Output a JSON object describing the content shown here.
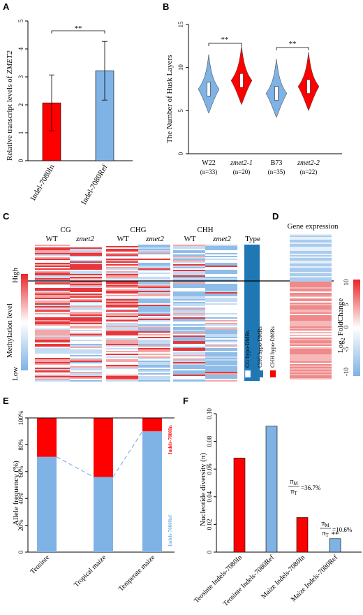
{
  "panel_labels": [
    "A",
    "B",
    "C",
    "D",
    "E",
    "F"
  ],
  "colors": {
    "red": "#ff0000",
    "blue": "#7fb2e5",
    "darkblue": "#1f77b4",
    "white": "#ffffff"
  },
  "chart_data": [
    {
      "panel": "A",
      "type": "bar",
      "ylabel_prefix": "Relative transcript levels of ",
      "ylabel_gene": "ZMET2",
      "categories": [
        "Indel-7080In",
        "Indel-7080Ref"
      ],
      "values": [
        2.07,
        3.22
      ],
      "errors": [
        1.0,
        1.05
      ],
      "colors": [
        "#ff0000",
        "#7fb2e5"
      ],
      "ylim": [
        0,
        5
      ],
      "yticks": [
        "0",
        "1",
        "2",
        "3",
        "4",
        "5"
      ],
      "significance": "**"
    },
    {
      "panel": "B",
      "type": "violin",
      "ylabel": "The Number of Husk Layers",
      "ylim": [
        0,
        15
      ],
      "yticks": [
        "0",
        "5",
        "10",
        "15"
      ],
      "groups": [
        {
          "name": "W22",
          "n": "(n=33)",
          "median": 7.5,
          "color": "#7fb2e5",
          "italic": false
        },
        {
          "name": "zmet2-1",
          "n": "(n=20)",
          "median": 8.5,
          "color": "#ff0000",
          "italic": true
        },
        {
          "name": "B73",
          "n": "(n=35)",
          "median": 7.0,
          "color": "#7fb2e5",
          "italic": false
        },
        {
          "name": "zmet2-2",
          "n": "(n=22)",
          "median": 7.8,
          "color": "#ff0000",
          "italic": true
        }
      ],
      "significance": [
        "**",
        "**"
      ]
    },
    {
      "panel": "E",
      "type": "bar",
      "ylabel": "Allele frequency (%)",
      "categories": [
        "Teosinte",
        "Tropical maize",
        "Temperate maize"
      ],
      "series": [
        {
          "name": "Indels-7080Ref",
          "values": [
            71,
            56,
            90
          ],
          "color": "#7fb2e5"
        },
        {
          "name": "Indels-7080In",
          "values": [
            29,
            44,
            10
          ],
          "color": "#ff0000"
        }
      ],
      "ylim": [
        0,
        100
      ],
      "yticks": [
        "0",
        "20%",
        "40%",
        "60%",
        "80%",
        "100%"
      ]
    },
    {
      "panel": "F",
      "type": "bar",
      "ylabel": "Nucleotide diversity (π)",
      "categories": [
        "Teosinte Indels-7080In",
        "Teosinte Indels-7080Ref",
        "Maize Indels-7080In",
        "Maize Indels-7080Ref"
      ],
      "values": [
        0.068,
        0.091,
        0.025,
        0.0097
      ],
      "colors": [
        "#ff0000",
        "#7fb2e5",
        "#ff0000",
        "#7fb2e5"
      ],
      "ylim": [
        0,
        0.1
      ],
      "yticks": [
        "0",
        "0.02",
        "0.04",
        "0.06",
        "0.08",
        "0.10"
      ],
      "annotations": [
        {
          "num": "π",
          "num_sub": "M",
          "den": "π",
          "den_sub": "T",
          "value": "=36.7%"
        },
        {
          "num": "π",
          "num_sub": "M",
          "den": "π",
          "den_sub": "T",
          "value": "=10.6%"
        }
      ],
      "significance": "**"
    }
  ],
  "panel_c": {
    "groups": [
      {
        "title": "CG"
      },
      {
        "title": "CHG"
      },
      {
        "title": "CHH"
      }
    ],
    "col_wt": "WT",
    "col_mut": "zmet2",
    "type_label": "Type",
    "legend": [
      {
        "label": "CG hypo-DMRs",
        "color": "#ffffff"
      },
      {
        "label": "CHG hypo-DMRs",
        "color": "#1f77b4"
      },
      {
        "label": "CHH hypo-DMRs",
        "color": "#ff0000"
      }
    ],
    "scale_high": "High",
    "scale_low": "Low",
    "scale_title": "Methylation level"
  },
  "panel_d": {
    "title": "Gene expression",
    "scale_title_prefix": "Log",
    "scale_title_sub": "2",
    "scale_title_suffix": " FoldChange",
    "scale_ticks": [
      "10",
      "5",
      "0",
      "-5",
      "-10"
    ]
  }
}
